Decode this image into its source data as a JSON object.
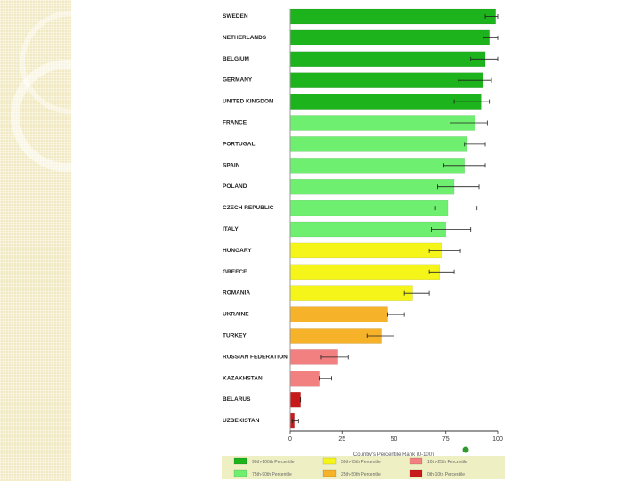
{
  "chart_data": {
    "type": "bar",
    "orientation": "horizontal",
    "categories": [
      "SWEDEN",
      "NETHERLANDS",
      "BELGIUM",
      "GERMANY",
      "UNITED KINGDOM",
      "FRANCE",
      "PORTUGAL",
      "SPAIN",
      "POLAND",
      "CZECH REPUBLIC",
      "ITALY",
      "HUNGARY",
      "GREECE",
      "ROMANIA",
      "UKRAINE",
      "TURKEY",
      "RUSSIAN FEDERATION",
      "KAZAKHSTAN",
      "BELARUS",
      "UZBEKISTAN"
    ],
    "values": [
      99,
      96,
      94,
      93,
      92,
      89,
      85,
      84,
      79,
      76,
      75,
      73,
      72,
      59,
      47,
      44,
      23,
      14,
      5,
      2
    ],
    "error_low": [
      94,
      93,
      87,
      81,
      79,
      77,
      84,
      74,
      71,
      70,
      68,
      67,
      67,
      55,
      47,
      37,
      15,
      14,
      5,
      1
    ],
    "error_high": [
      100,
      100,
      100,
      97,
      96,
      95,
      94,
      94,
      91,
      90,
      87,
      82,
      79,
      67,
      55,
      50,
      28,
      20,
      5,
      4
    ],
    "bar_colors": [
      "#1db31d",
      "#1db31d",
      "#1db31d",
      "#1db31d",
      "#1db31d",
      "#6fef6f",
      "#6fef6f",
      "#6fef6f",
      "#6fef6f",
      "#6fef6f",
      "#6fef6f",
      "#f5f51a",
      "#f5f51a",
      "#f5f51a",
      "#f6b228",
      "#f6b228",
      "#f28080",
      "#f28080",
      "#c81a1a",
      "#c81a1a"
    ],
    "xlim": [
      0,
      100
    ],
    "xticks": [
      "0",
      "25",
      "50",
      "75",
      "100"
    ],
    "xlabel": "Country's Percentile Rank (0-100)",
    "grid": false,
    "legend_placement": "bottom",
    "legend": [
      {
        "label": "90th-100th Percentile",
        "color": "#1db31d"
      },
      {
        "label": "50th-75th Percentile",
        "color": "#f5f51a"
      },
      {
        "label": "10th-25th Percentile",
        "color": "#f28080"
      },
      {
        "label": "75th-90th Percentile",
        "color": "#6fef6f"
      },
      {
        "label": "25th-50th Percentile",
        "color": "#f6b228"
      },
      {
        "label": "0th-10th Percentile",
        "color": "#c81a1a"
      }
    ]
  }
}
